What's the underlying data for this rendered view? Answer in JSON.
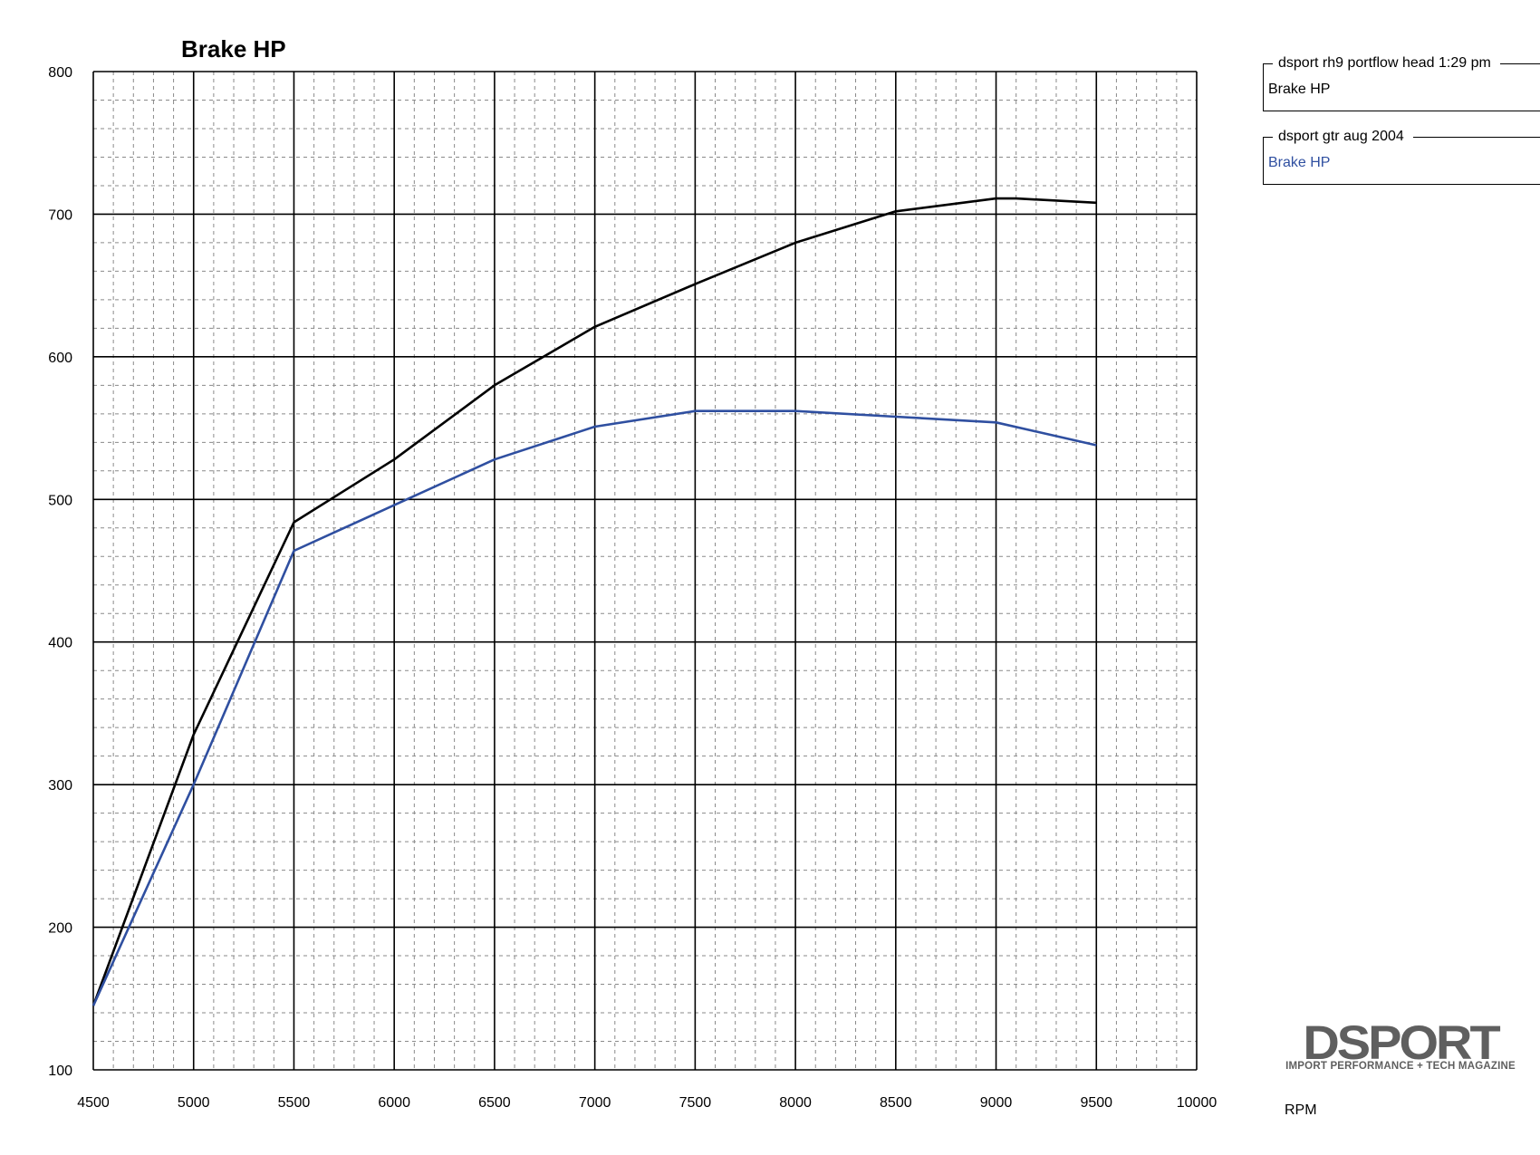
{
  "chart_data": {
    "type": "line",
    "title": "Brake HP",
    "xlabel": "RPM",
    "ylabel": "",
    "xlim": [
      4500,
      10000
    ],
    "ylim": [
      100,
      800
    ],
    "x_ticks": [
      4500,
      5000,
      5500,
      6000,
      6500,
      7000,
      7500,
      8000,
      8500,
      9000,
      9500,
      10000
    ],
    "y_ticks": [
      100,
      200,
      300,
      400,
      500,
      600,
      700,
      800
    ],
    "x_minor_step": 100,
    "y_minor_step": 20,
    "grid": true,
    "legend_position": "top-right",
    "series": [
      {
        "run": "dsport rh9 portflow head 1:29 pm",
        "name": "Brake HP",
        "color": "#000000",
        "x": [
          4500,
          5000,
          5500,
          6000,
          6500,
          7000,
          7500,
          8000,
          8500,
          9000,
          9100,
          9500
        ],
        "y": [
          145,
          335,
          484,
          528,
          580,
          621,
          651,
          680,
          702,
          711,
          711,
          708
        ]
      },
      {
        "run": "dsport gtr aug 2004",
        "name": "Brake HP",
        "color": "#2f4fa0",
        "x": [
          4500,
          5000,
          5500,
          6000,
          6500,
          7000,
          7500,
          8000,
          8500,
          9000,
          9500
        ],
        "y": [
          145,
          300,
          464,
          496,
          528,
          551,
          562,
          562,
          558,
          554,
          538
        ]
      }
    ]
  },
  "branding": {
    "logo_text": "DSPORT",
    "logo_tagline": "IMPORT PERFORMANCE + TECH MAGAZINE"
  }
}
